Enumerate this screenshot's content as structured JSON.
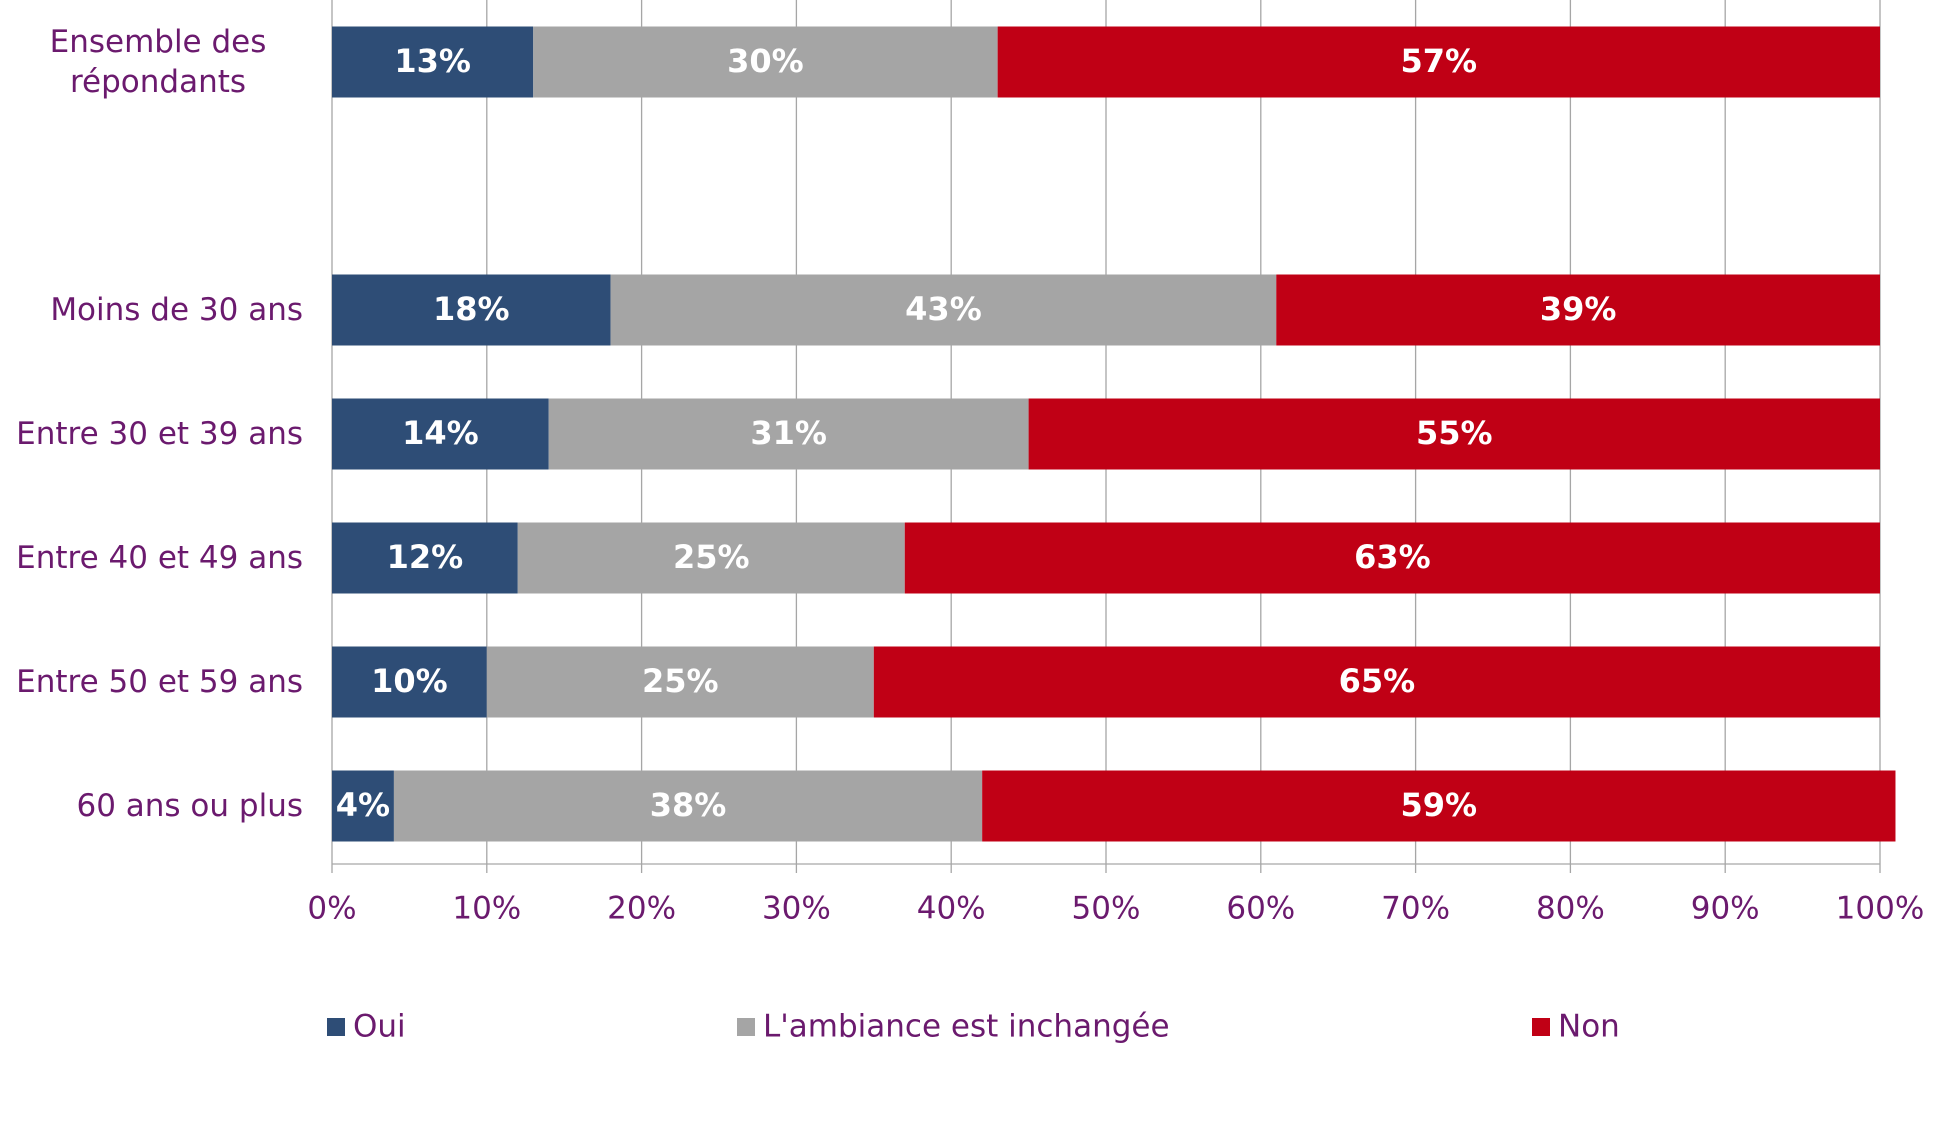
{
  "chart_data": {
    "type": "stacked-bar-horizontal",
    "categories": [
      "Ensemble des répondants",
      null,
      "Moins de 30 ans",
      "Entre 30 et 39 ans",
      "Entre 40 et 49 ans",
      "Entre 50 et 59 ans",
      "60 ans ou plus"
    ],
    "series": [
      {
        "name": "Oui",
        "color": "#2e4d76",
        "values": [
          13,
          null,
          18,
          14,
          12,
          10,
          4
        ],
        "value_labels": [
          "13%",
          null,
          "18%",
          "14%",
          "12%",
          "10%",
          "4%"
        ]
      },
      {
        "name": "L'ambiance est inchangée",
        "color": "#a5a5a5",
        "values": [
          30,
          null,
          43,
          31,
          25,
          25,
          38
        ],
        "value_labels": [
          "30%",
          null,
          "43%",
          "31%",
          "25%",
          "25%",
          "38%"
        ]
      },
      {
        "name": "Non",
        "color": "#c00015",
        "values": [
          57,
          null,
          39,
          55,
          63,
          65,
          59
        ],
        "value_labels": [
          "57%",
          null,
          "39%",
          "55%",
          "63%",
          "65%",
          "59%"
        ]
      }
    ],
    "xlim": [
      0,
      100
    ],
    "xticks": [
      {
        "value": 0,
        "label": "0%"
      },
      {
        "value": 10,
        "label": "10%"
      },
      {
        "value": 20,
        "label": "20%"
      },
      {
        "value": 30,
        "label": "30%"
      },
      {
        "value": 40,
        "label": "40%"
      },
      {
        "value": 50,
        "label": "50%"
      },
      {
        "value": 60,
        "label": "60%"
      },
      {
        "value": 70,
        "label": "70%"
      },
      {
        "value": 80,
        "label": "80%"
      },
      {
        "value": 90,
        "label": "90%"
      },
      {
        "value": 100,
        "label": "100%"
      }
    ],
    "grid": true,
    "legend": "bottom"
  }
}
